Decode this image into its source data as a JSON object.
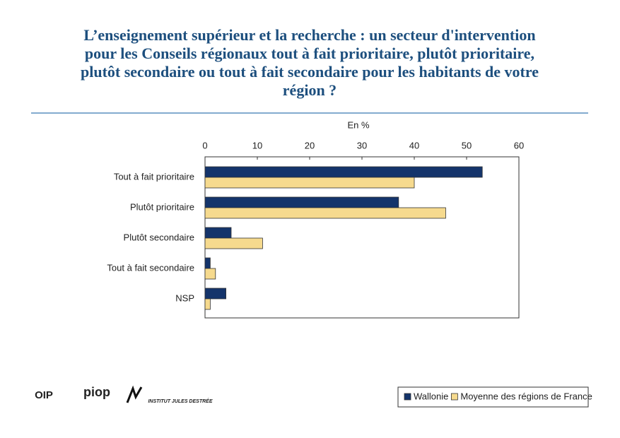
{
  "chart_data": {
    "type": "barh",
    "title": [
      "L’enseignement supérieur et la recherche : un secteur d'intervention",
      "pour les Conseils régionaux tout à fait prioritaire, plutôt prioritaire,",
      "plutôt secondaire ou tout à fait secondaire pour les habitants de votre",
      "région ?"
    ],
    "xlabel": "En %",
    "categories": [
      "Tout à fait prioritaire",
      "Plutôt prioritaire",
      "Plutôt secondaire",
      "Tout à fait secondaire",
      "NSP"
    ],
    "series": [
      {
        "name": "Wallonie",
        "color": "#14346b",
        "values": [
          53,
          37,
          5,
          1,
          4
        ]
      },
      {
        "name": "Moyenne des régions de France",
        "color": "#f6da8e",
        "values": [
          40,
          46,
          11,
          2,
          1
        ]
      }
    ],
    "xlim": [
      0,
      60
    ],
    "xticks": [
      0,
      10,
      20,
      30,
      40,
      50,
      60
    ],
    "legend": "bottom-right",
    "logos": [
      "OIP",
      "piop",
      "INSTITUT JULES DESTRÉE"
    ]
  }
}
